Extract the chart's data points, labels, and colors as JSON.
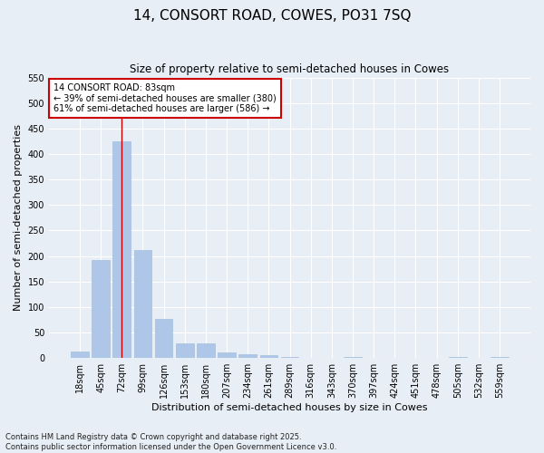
{
  "title": "14, CONSORT ROAD, COWES, PO31 7SQ",
  "subtitle": "Size of property relative to semi-detached houses in Cowes",
  "xlabel": "Distribution of semi-detached houses by size in Cowes",
  "ylabel": "Number of semi-detached properties",
  "categories": [
    "18sqm",
    "45sqm",
    "72sqm",
    "99sqm",
    "126sqm",
    "153sqm",
    "180sqm",
    "207sqm",
    "234sqm",
    "261sqm",
    "289sqm",
    "316sqm",
    "343sqm",
    "370sqm",
    "397sqm",
    "424sqm",
    "451sqm",
    "478sqm",
    "505sqm",
    "532sqm",
    "559sqm"
  ],
  "values": [
    12,
    193,
    425,
    212,
    77,
    28,
    28,
    11,
    8,
    6,
    2,
    0,
    0,
    2,
    0,
    0,
    0,
    0,
    2,
    0,
    2
  ],
  "bar_color": "#aec6e8",
  "bar_edge_color": "#9ab8d8",
  "vline_x": 2,
  "vline_color": "#cc0000",
  "annotation_title": "14 CONSORT ROAD: 83sqm",
  "annotation_line1": "← 39% of semi-detached houses are smaller (380)",
  "annotation_line2": "61% of semi-detached houses are larger (586) →",
  "annotation_box_color": "#ffffff",
  "annotation_box_edge": "#cc0000",
  "ylim": [
    0,
    550
  ],
  "yticks": [
    0,
    50,
    100,
    150,
    200,
    250,
    300,
    350,
    400,
    450,
    500,
    550
  ],
  "footnote1": "Contains HM Land Registry data © Crown copyright and database right 2025.",
  "footnote2": "Contains public sector information licensed under the Open Government Licence v3.0.",
  "title_fontsize": 11,
  "subtitle_fontsize": 8.5,
  "axis_label_fontsize": 8,
  "tick_fontsize": 7,
  "annot_fontsize": 7,
  "footnote_fontsize": 6,
  "background_color": "#e8eef5",
  "plot_bg_color": "#e8eef5",
  "grid_color": "#ffffff"
}
